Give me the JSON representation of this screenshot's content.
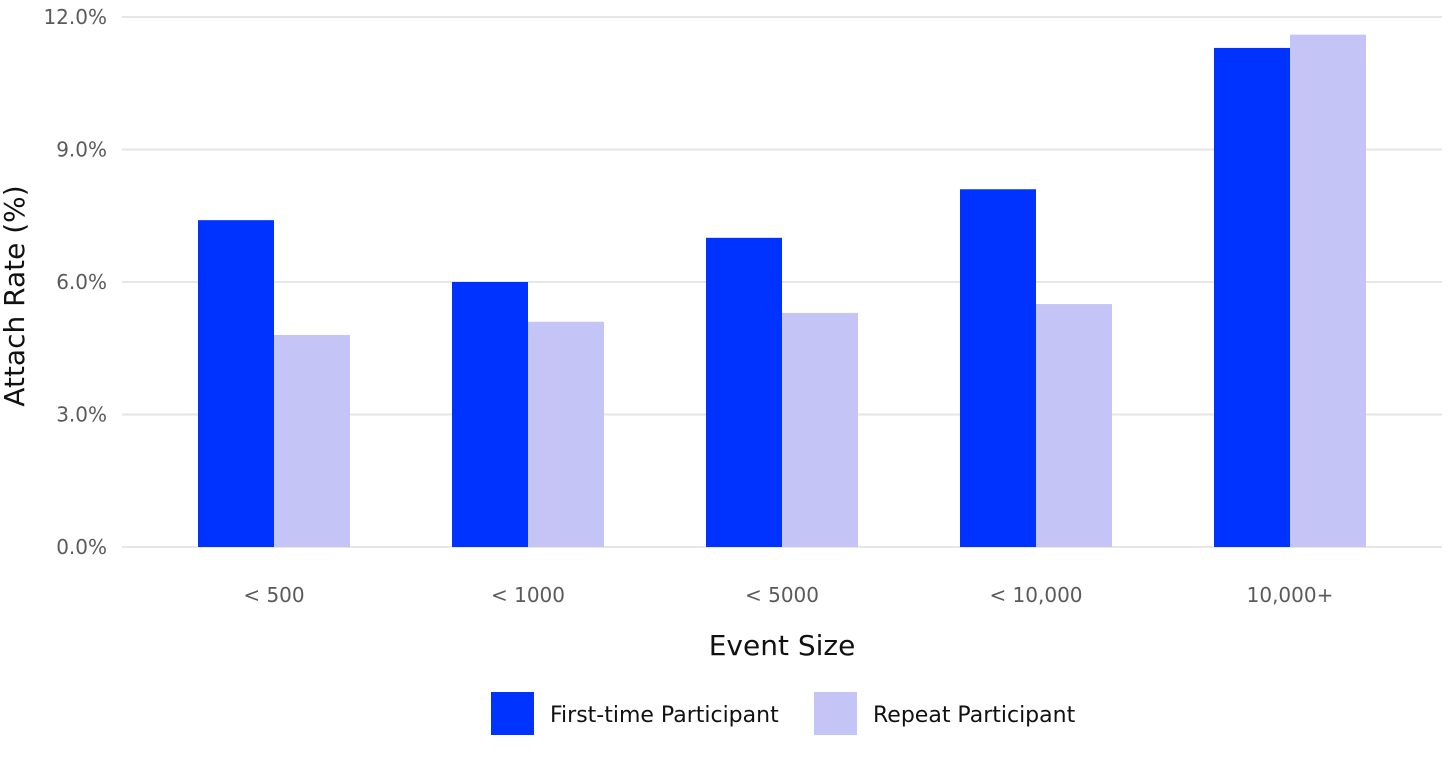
{
  "chart_data": {
    "type": "bar",
    "title": "",
    "xlabel": "Event Size",
    "ylabel": "Attach Rate (%)",
    "categories": [
      "< 500",
      "< 1000",
      "< 5000",
      "< 10,000",
      "10,000+"
    ],
    "series": [
      {
        "name": "First-time Participant",
        "color": "#0033ff",
        "values": [
          7.4,
          6.0,
          7.0,
          8.1,
          11.3
        ]
      },
      {
        "name": "Repeat Participant",
        "color": "#c4c4f7",
        "values": [
          4.8,
          5.1,
          5.3,
          5.5,
          11.6
        ]
      }
    ],
    "ylim": [
      0,
      12
    ],
    "yticks": [
      0,
      3,
      6,
      9,
      12
    ],
    "ytick_labels": [
      "0.0%",
      "3.0%",
      "6.0%",
      "9.0%",
      "12.0%"
    ],
    "grid": true,
    "legend_position": "bottom"
  }
}
